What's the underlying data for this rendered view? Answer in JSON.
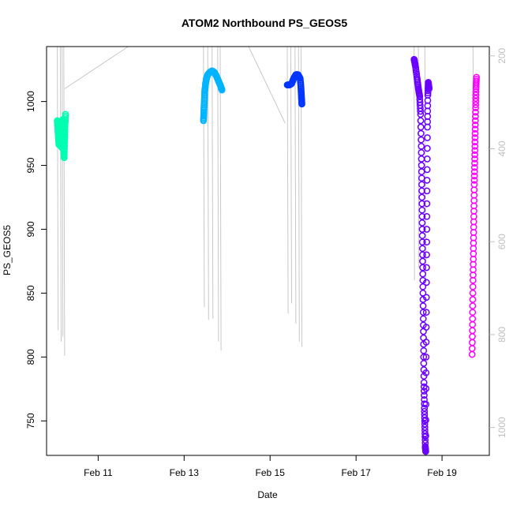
{
  "chart_data": {
    "type": "scatter",
    "title": "ATOM2 Northbound PS_GEOS5",
    "xlabel": "Date",
    "ylabel": "PS_GEOS5",
    "x_ticks": [
      "Feb 11",
      "Feb 13",
      "Feb 15",
      "Feb 17",
      "Feb 19"
    ],
    "x_tick_days": [
      11,
      13,
      15,
      17,
      19
    ],
    "xlim_days": [
      9.8,
      20.1
    ],
    "ylim": [
      723,
      1043
    ],
    "y_ticks": [
      750,
      800,
      850,
      900,
      950,
      1000
    ],
    "right_axis": {
      "ylim": [
        1060,
        180
      ],
      "ticks": [
        200,
        400,
        600,
        800,
        1000
      ],
      "color": "#bfbfbf"
    },
    "profile_color": "#c8c8c8",
    "series": [
      {
        "color": "#00ffb0",
        "points": [
          [
            10.05,
            985
          ],
          [
            10.06,
            980
          ],
          [
            10.07,
            975
          ],
          [
            10.08,
            970
          ],
          [
            10.09,
            966
          ],
          [
            10.1,
            972
          ],
          [
            10.11,
            978
          ],
          [
            10.12,
            983
          ],
          [
            10.13,
            976
          ],
          [
            10.14,
            968
          ],
          [
            10.15,
            964
          ],
          [
            10.16,
            970
          ],
          [
            10.17,
            980
          ],
          [
            10.18,
            986
          ],
          [
            10.19,
            975
          ],
          [
            10.2,
            962
          ],
          [
            10.21,
            956
          ],
          [
            10.22,
            970
          ],
          [
            10.23,
            982
          ],
          [
            10.24,
            990
          ]
        ]
      },
      {
        "color": "#00b4ff",
        "points": [
          [
            13.45,
            985
          ],
          [
            13.46,
            992
          ],
          [
            13.47,
            1000
          ],
          [
            13.48,
            1008
          ],
          [
            13.5,
            1014
          ],
          [
            13.52,
            1018
          ],
          [
            13.55,
            1021
          ],
          [
            13.6,
            1023
          ],
          [
            13.65,
            1024
          ],
          [
            13.7,
            1023
          ],
          [
            13.75,
            1020
          ],
          [
            13.8,
            1016
          ],
          [
            13.85,
            1012
          ],
          [
            13.88,
            1009
          ]
        ]
      },
      {
        "color": "#0036ff",
        "points": [
          [
            15.4,
            1013
          ],
          [
            15.45,
            1013
          ],
          [
            15.5,
            1014
          ],
          [
            15.55,
            1018
          ],
          [
            15.6,
            1021
          ],
          [
            15.65,
            1021
          ],
          [
            15.7,
            1018
          ],
          [
            15.72,
            1010
          ],
          [
            15.73,
            1003
          ],
          [
            15.74,
            998
          ]
        ]
      },
      {
        "color": "#6a00ff",
        "points": [
          [
            18.35,
            1033
          ],
          [
            18.38,
            1028
          ],
          [
            18.42,
            1018
          ],
          [
            18.45,
            1010
          ],
          [
            18.48,
            1004
          ],
          [
            18.5,
            990
          ],
          [
            18.52,
            960
          ],
          [
            18.53,
            930
          ],
          [
            18.54,
            900
          ],
          [
            18.55,
            870
          ],
          [
            18.56,
            840
          ],
          [
            18.57,
            810
          ],
          [
            18.58,
            780
          ],
          [
            18.59,
            760
          ],
          [
            18.6,
            745
          ],
          [
            18.61,
            730
          ],
          [
            18.62,
            726
          ],
          [
            18.63,
            800
          ],
          [
            18.64,
            870
          ],
          [
            18.65,
            930
          ],
          [
            18.66,
            980
          ],
          [
            18.67,
            1005
          ],
          [
            18.68,
            1015
          ],
          [
            18.7,
            1010
          ]
        ]
      },
      {
        "color": "#ff00ff",
        "points": [
          [
            19.7,
            802
          ],
          [
            19.71,
            830
          ],
          [
            19.72,
            860
          ],
          [
            19.73,
            885
          ],
          [
            19.74,
            910
          ],
          [
            19.75,
            935
          ],
          [
            19.76,
            955
          ],
          [
            19.77,
            975
          ],
          [
            19.78,
            995
          ],
          [
            19.79,
            1010
          ],
          [
            19.8,
            1019
          ]
        ]
      }
    ],
    "profile_lines": [
      [
        [
          10.05,
          1043
        ],
        [
          10.07,
          821
        ]
      ],
      [
        [
          10.12,
          1043
        ],
        [
          10.14,
          812
        ]
      ],
      [
        [
          10.16,
          1043
        ],
        [
          10.18,
          816
        ]
      ],
      [
        [
          10.2,
          1043
        ],
        [
          10.22,
          801
        ]
      ],
      [
        [
          10.22,
          1010
        ],
        [
          11.7,
          1043
        ]
      ],
      [
        [
          13.45,
          1043
        ],
        [
          13.47,
          839
        ]
      ],
      [
        [
          13.55,
          1043
        ],
        [
          13.57,
          829
        ]
      ],
      [
        [
          13.65,
          1043
        ],
        [
          13.67,
          830
        ]
      ],
      [
        [
          13.78,
          1043
        ],
        [
          13.8,
          812
        ]
      ],
      [
        [
          13.84,
          1043
        ],
        [
          13.86,
          805
        ]
      ],
      [
        [
          14.5,
          1043
        ],
        [
          15.35,
          983
        ]
      ],
      [
        [
          15.4,
          1043
        ],
        [
          15.42,
          834
        ]
      ],
      [
        [
          15.48,
          1043
        ],
        [
          15.5,
          842
        ]
      ],
      [
        [
          15.58,
          1043
        ],
        [
          15.6,
          826
        ]
      ],
      [
        [
          15.66,
          1043
        ],
        [
          15.68,
          812
        ]
      ],
      [
        [
          15.72,
          1043
        ],
        [
          15.74,
          808
        ]
      ],
      [
        [
          18.35,
          1043
        ],
        [
          18.36,
          860
        ]
      ],
      [
        [
          18.45,
          1043
        ],
        [
          18.46,
          870
        ]
      ],
      [
        [
          18.6,
          1043
        ],
        [
          18.62,
          855
        ]
      ],
      [
        [
          19.72,
          1043
        ],
        [
          19.74,
          960
        ]
      ]
    ]
  }
}
